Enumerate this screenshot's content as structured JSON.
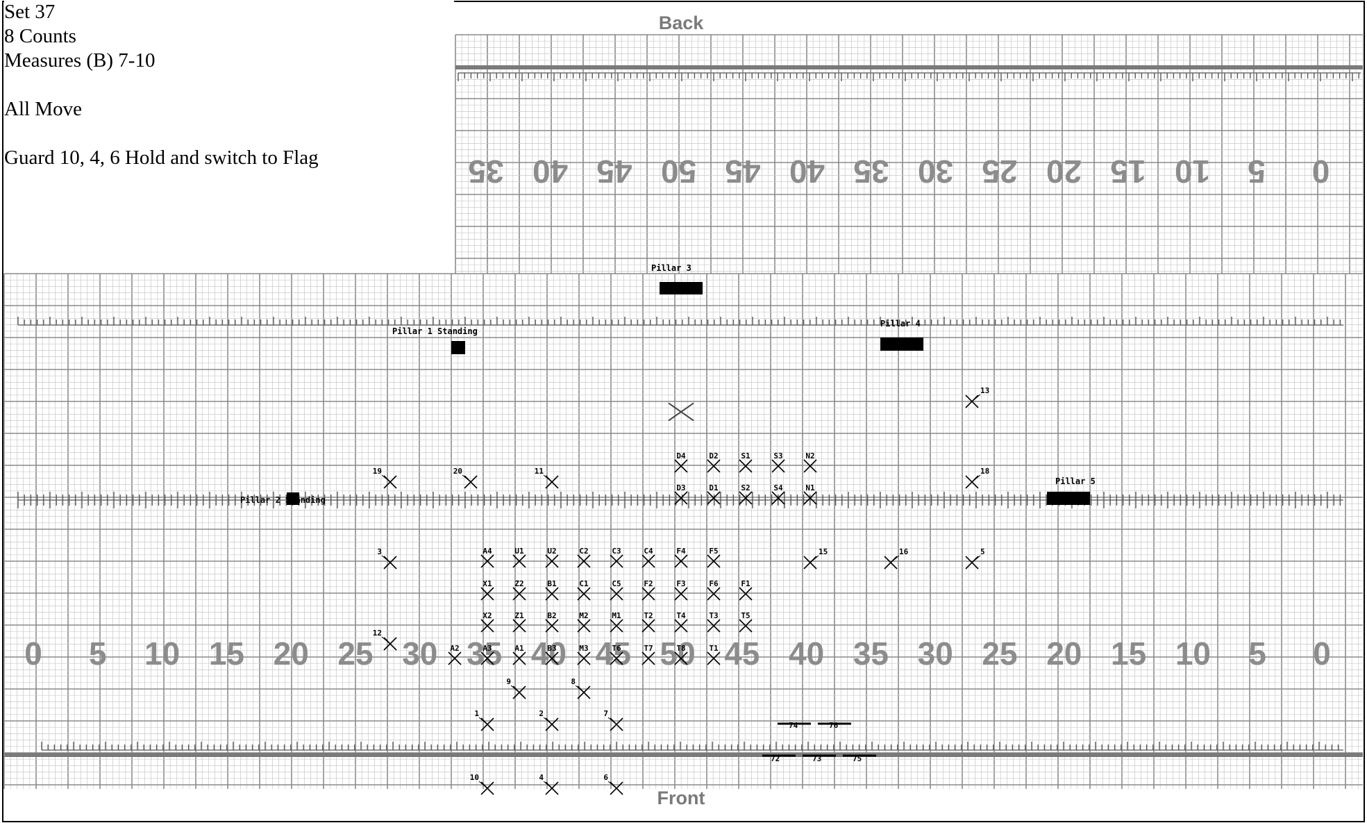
{
  "set_info": {
    "set": "Set 37",
    "counts": "8 Counts",
    "measures": "Measures (B) 7-10",
    "note1": "All Move",
    "note2": "Guard 10, 4, 6 Hold and switch to Flag"
  },
  "field": {
    "back_label": "Back",
    "front_label": "Front",
    "top_numbers": [
      "35",
      "40",
      "45",
      "50",
      "45",
      "40",
      "35",
      "30",
      "25",
      "20",
      "15",
      "10",
      "5",
      "0"
    ],
    "bottom_numbers": [
      "0",
      "5",
      "10",
      "15",
      "20",
      "25",
      "30",
      "35",
      "40",
      "45",
      "50",
      "45",
      "40",
      "35",
      "30",
      "25",
      "20",
      "15",
      "10",
      "5",
      "0"
    ]
  },
  "colors": {
    "grid_minor": "#c8c8c8",
    "grid_major": "#8a8a8a",
    "yard_text": "#8c8c8c",
    "marker": "#000000"
  },
  "chart_data": {
    "type": "scatter",
    "performers": [
      {
        "label": "D4",
        "x": "50",
        "y": "1"
      },
      {
        "label": "D2",
        "x": "50",
        "y": "1"
      },
      {
        "label": "S1",
        "x": "45",
        "y": "1"
      },
      {
        "label": "S3",
        "x": "45",
        "y": "1"
      },
      {
        "label": "N2",
        "x": "40",
        "y": "1"
      },
      {
        "label": "D3",
        "x": "50",
        "y": "2"
      },
      {
        "label": "D1",
        "x": "50",
        "y": "2"
      },
      {
        "label": "S2",
        "x": "45",
        "y": "2"
      },
      {
        "label": "S4",
        "x": "45",
        "y": "2"
      },
      {
        "label": "N1",
        "x": "40",
        "y": "2"
      },
      {
        "label": "A4",
        "x": "35",
        "y": "3"
      },
      {
        "label": "U1",
        "x": "35",
        "y": "3"
      },
      {
        "label": "U2",
        "x": "40",
        "y": "3"
      },
      {
        "label": "C2",
        "x": "40",
        "y": "3"
      },
      {
        "label": "C3",
        "x": "45",
        "y": "3"
      },
      {
        "label": "C4",
        "x": "45",
        "y": "3"
      },
      {
        "label": "F4",
        "x": "50",
        "y": "3"
      },
      {
        "label": "F5",
        "x": "50",
        "y": "3"
      },
      {
        "label": "X1",
        "x": "35",
        "y": "4"
      },
      {
        "label": "Z2",
        "x": "35",
        "y": "4"
      },
      {
        "label": "B1",
        "x": "40",
        "y": "4"
      },
      {
        "label": "C1",
        "x": "40",
        "y": "4"
      },
      {
        "label": "C5",
        "x": "45",
        "y": "4"
      },
      {
        "label": "F2",
        "x": "45",
        "y": "4"
      },
      {
        "label": "F3",
        "x": "50",
        "y": "4"
      },
      {
        "label": "F6",
        "x": "50",
        "y": "4"
      },
      {
        "label": "F1",
        "x": "45",
        "y": "4"
      },
      {
        "label": "X2",
        "x": "35",
        "y": "5"
      },
      {
        "label": "Z1",
        "x": "35",
        "y": "5"
      },
      {
        "label": "B2",
        "x": "40",
        "y": "5"
      },
      {
        "label": "M2",
        "x": "40",
        "y": "5"
      },
      {
        "label": "M1",
        "x": "45",
        "y": "5"
      },
      {
        "label": "T2",
        "x": "45",
        "y": "5"
      },
      {
        "label": "T4",
        "x": "50",
        "y": "5"
      },
      {
        "label": "T3",
        "x": "50",
        "y": "5"
      },
      {
        "label": "T5",
        "x": "45",
        "y": "5"
      },
      {
        "label": "A2",
        "x": "30",
        "y": "6"
      },
      {
        "label": "A3",
        "x": "35",
        "y": "6"
      },
      {
        "label": "A1",
        "x": "35",
        "y": "6"
      },
      {
        "label": "B3",
        "x": "40",
        "y": "6"
      },
      {
        "label": "M3",
        "x": "40",
        "y": "6"
      },
      {
        "label": "T6",
        "x": "45",
        "y": "6"
      },
      {
        "label": "T7",
        "x": "45",
        "y": "6"
      },
      {
        "label": "T8",
        "x": "50",
        "y": "6"
      },
      {
        "label": "T1",
        "x": "50",
        "y": "6"
      },
      {
        "label": "19",
        "x": "25",
        "y": "2"
      },
      {
        "label": "20",
        "x": "30",
        "y": "2"
      },
      {
        "label": "11",
        "x": "40",
        "y": "2"
      },
      {
        "label": "13",
        "x": "25",
        "y": "0"
      },
      {
        "label": "18",
        "x": "25",
        "y": "2"
      },
      {
        "label": "3",
        "x": "25",
        "y": "3"
      },
      {
        "label": "15",
        "x": "40",
        "y": "3"
      },
      {
        "label": "16",
        "x": "30",
        "y": "3"
      },
      {
        "label": "5",
        "x": "25",
        "y": "3"
      },
      {
        "label": "12",
        "x": "25",
        "y": "5"
      },
      {
        "label": "9",
        "x": "35",
        "y": "7"
      },
      {
        "label": "8",
        "x": "45",
        "y": "7"
      },
      {
        "label": "1",
        "x": "35",
        "y": "8"
      },
      {
        "label": "2",
        "x": "40",
        "y": "8"
      },
      {
        "label": "7",
        "x": "45",
        "y": "8"
      },
      {
        "label": "10",
        "x": "35",
        "y": "9"
      },
      {
        "label": "4",
        "x": "40",
        "y": "9"
      },
      {
        "label": "6",
        "x": "45",
        "y": "9"
      }
    ],
    "props": [
      {
        "label": "Pillar 3"
      },
      {
        "label": "Pillar 1 Standing"
      },
      {
        "label": "Pillar 4"
      },
      {
        "label": "Pillar 2 Standing"
      },
      {
        "label": "Pillar 5"
      }
    ],
    "bars": [
      {
        "label": "74"
      },
      {
        "label": "76"
      },
      {
        "label": "72"
      },
      {
        "label": "73"
      },
      {
        "label": "75"
      }
    ]
  }
}
